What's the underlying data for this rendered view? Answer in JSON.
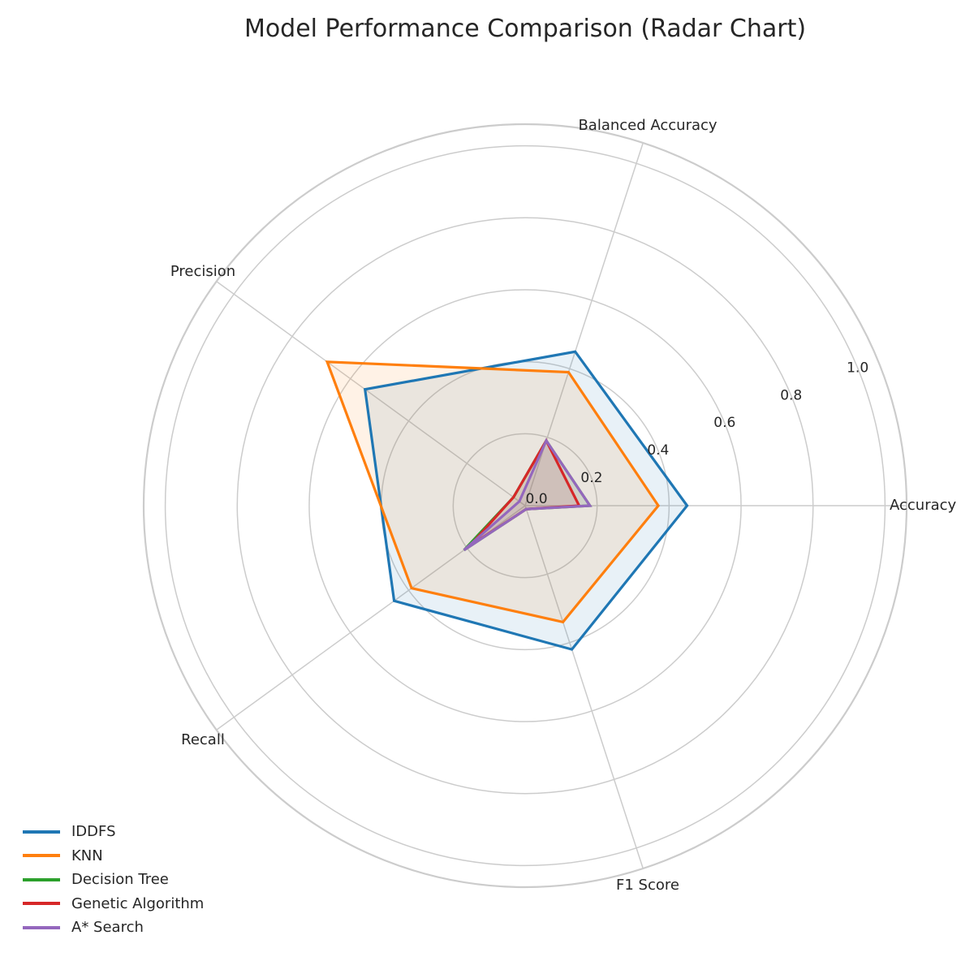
{
  "chart_data": {
    "type": "radar",
    "title": "Model Performance Comparison (Radar Chart)",
    "axes": [
      "Accuracy",
      "Balanced Accuracy",
      "Precision",
      "Recall",
      "F1 Score"
    ],
    "rlim": [
      0,
      1.06
    ],
    "rticks": [
      0.0,
      0.2,
      0.4,
      0.6,
      0.8,
      1.0
    ],
    "rtick_labels": [
      "0.0",
      "0.2",
      "0.4",
      "0.6",
      "0.8",
      "1.0"
    ],
    "grid": true,
    "legend": "bottom-left",
    "series": [
      {
        "name": "IDDFS",
        "values": [
          0.45,
          0.45,
          0.55,
          0.45,
          0.42
        ],
        "color": "#1f77b4",
        "fill": true
      },
      {
        "name": "KNN",
        "values": [
          0.37,
          0.39,
          0.68,
          0.39,
          0.34
        ],
        "color": "#ff7f0e",
        "fill": true
      },
      {
        "name": "Decision Tree",
        "values": [
          0.18,
          0.19,
          0.04,
          0.21,
          0.01
        ],
        "color": "#2ca02c",
        "fill": true
      },
      {
        "name": "Genetic Algorithm",
        "values": [
          0.15,
          0.19,
          0.04,
          0.19,
          0.01
        ],
        "color": "#d62728",
        "fill": true
      },
      {
        "name": "A* Search",
        "values": [
          0.18,
          0.19,
          0.02,
          0.21,
          0.01
        ],
        "color": "#9467bd",
        "fill": true
      }
    ]
  }
}
